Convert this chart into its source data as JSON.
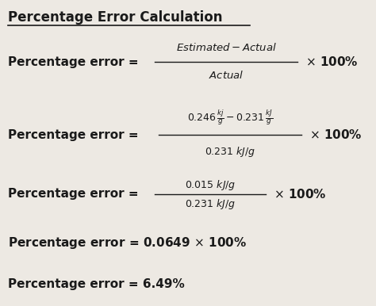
{
  "title": "Percentage Error Calculation",
  "bg_color": "#ede9e3",
  "text_color": "#1a1a1a",
  "figsize": [
    4.74,
    3.86
  ],
  "dpi": 100,
  "label_fs": 11,
  "formula_fs": 9,
  "title_fs": 12,
  "times100_fs": 11
}
